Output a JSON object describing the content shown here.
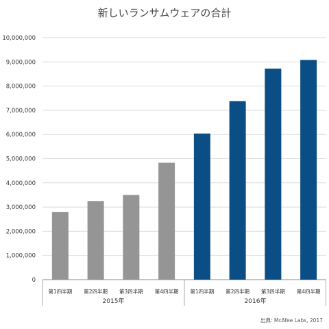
{
  "chart_data": {
    "type": "bar",
    "title": "新しいランサムウェアの合計",
    "ylim": [
      0,
      10000000
    ],
    "yticks": [
      "10,000,000",
      "9,000,000",
      "8,000,000",
      "7,000,000",
      "6,000,000",
      "5,000,000",
      "4,000,000",
      "3,000,000",
      "2,000,000",
      "1,000,000",
      "0"
    ],
    "tick_values": [
      10000000,
      9000000,
      8000000,
      7000000,
      6000000,
      5000000,
      4000000,
      3000000,
      2000000,
      1000000,
      0
    ],
    "grid": true,
    "groups": [
      {
        "label": "2015年",
        "color": "#959595",
        "categories": [
          "第1四半期",
          "第2四半期",
          "第3四半期",
          "第4四半期"
        ],
        "values": [
          2800000,
          3250000,
          3500000,
          4830000
        ]
      },
      {
        "label": "2016年",
        "color": "#0b4d85",
        "categories": [
          "第1四半期",
          "第2四半期",
          "第3四半期",
          "第4四半期"
        ],
        "values": [
          6040000,
          7380000,
          8720000,
          9080000
        ]
      }
    ],
    "source": "出典: McAfee Labs, 2017"
  }
}
